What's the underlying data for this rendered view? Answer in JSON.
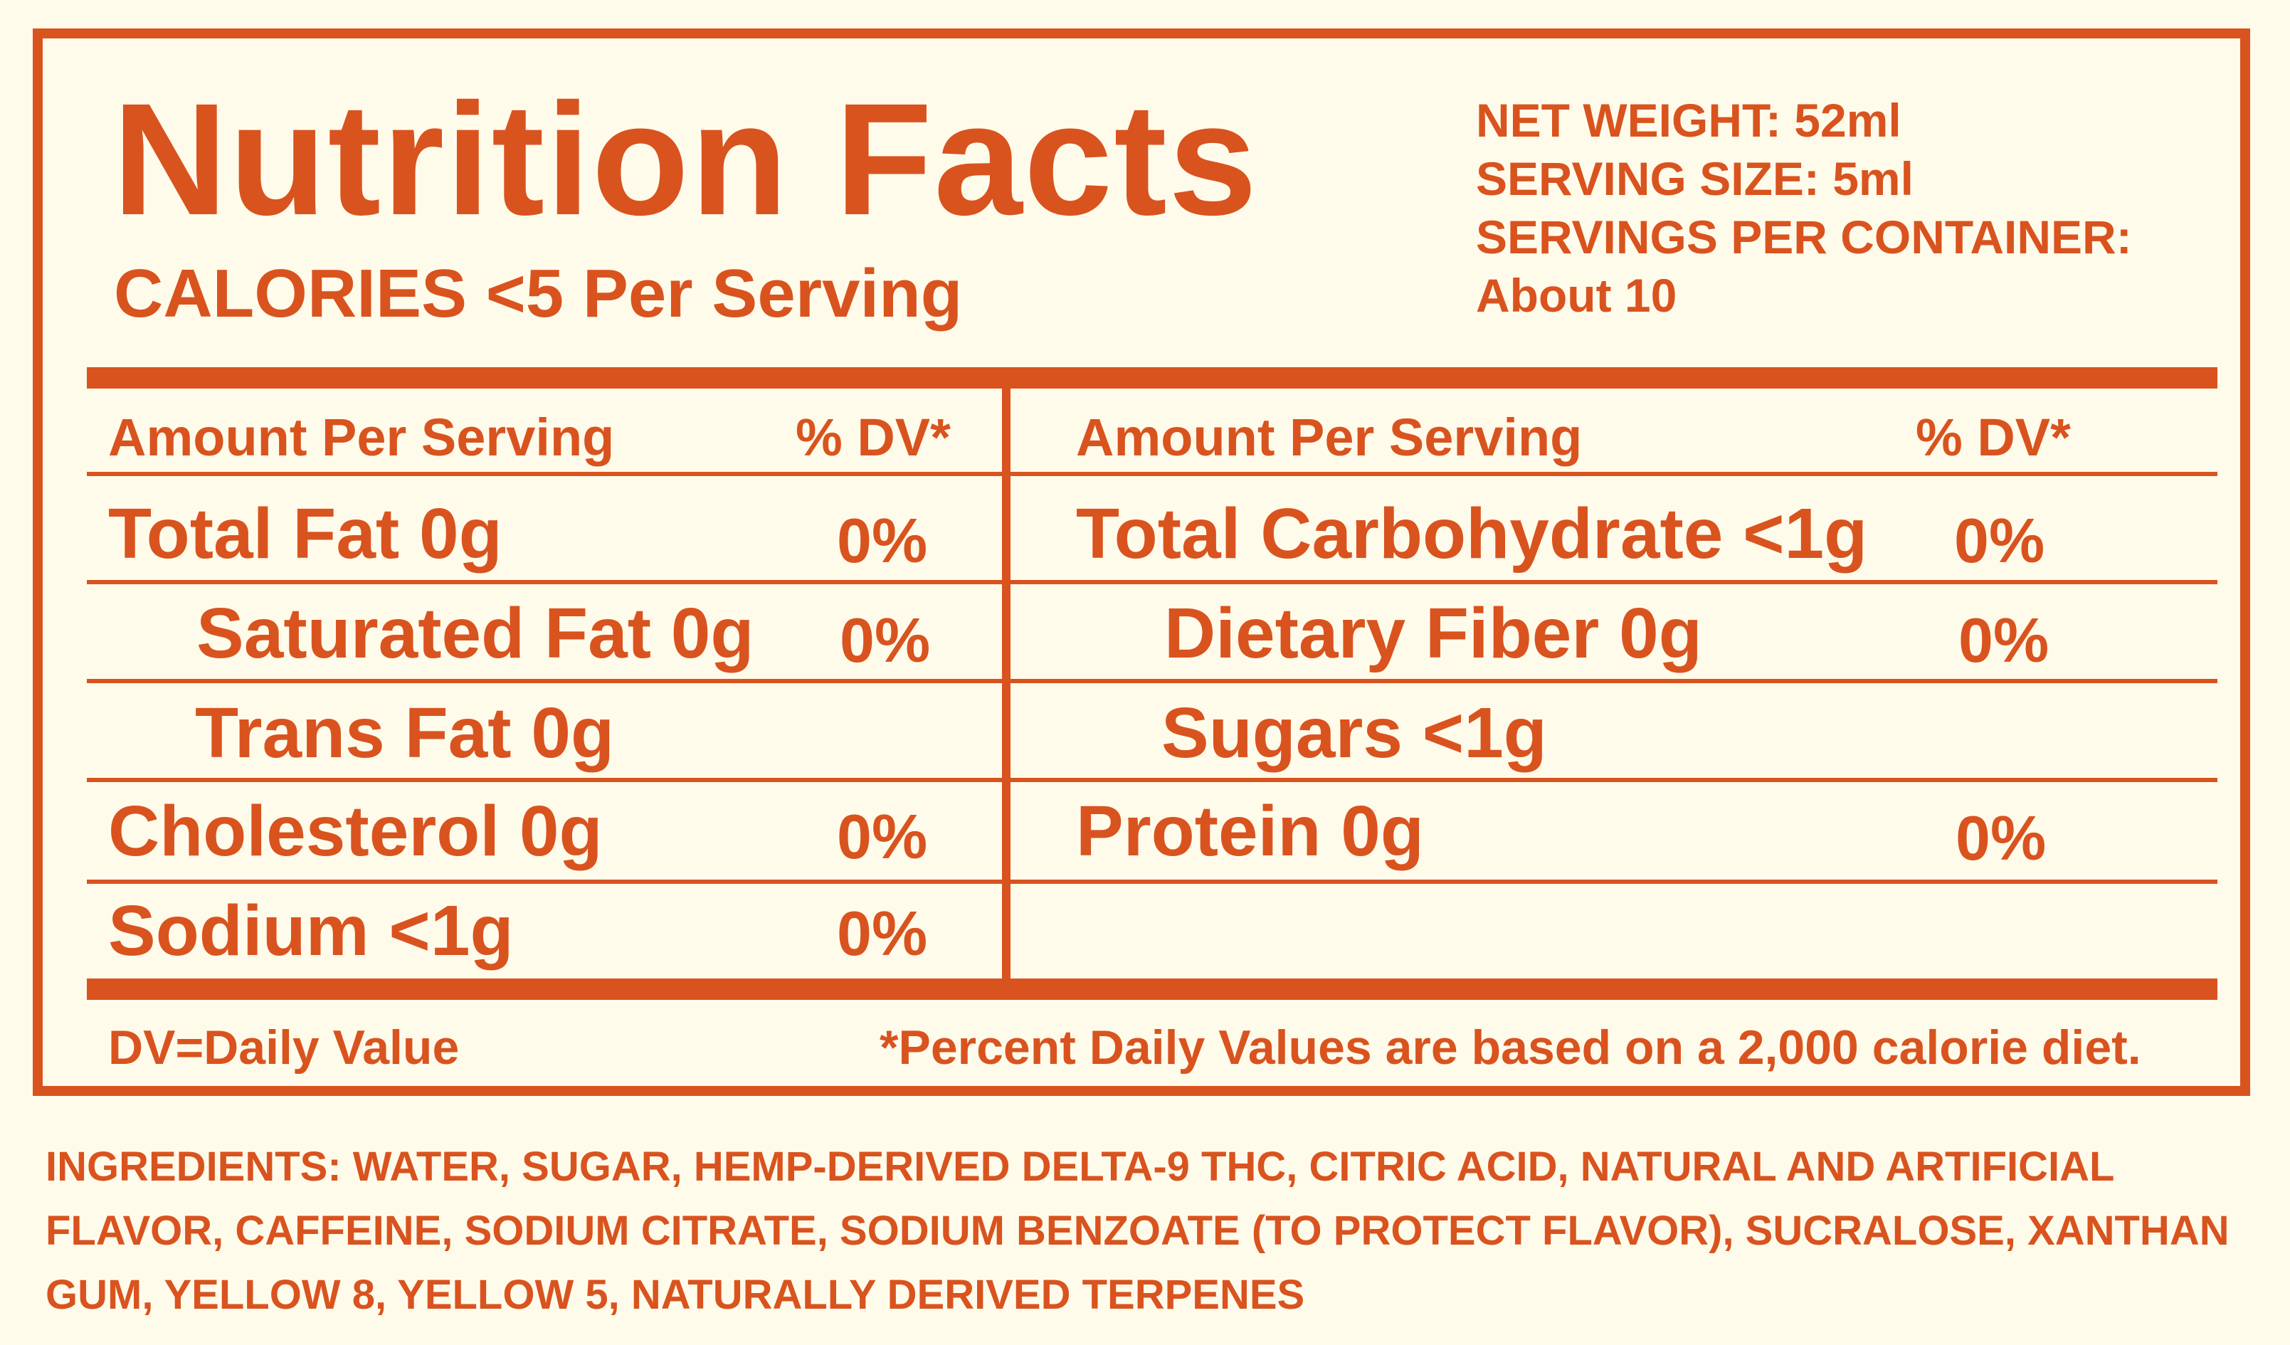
{
  "title": "Nutrition Facts",
  "calories": "CALORIES <5 Per Serving",
  "net_info": {
    "net_weight": "NET WEIGHT: 52ml",
    "serving_size": "SERVING SIZE: 5ml",
    "servings_per_container": "SERVINGS PER CONTAINER:",
    "servings_value": "About 10"
  },
  "left_column": {
    "header_amount": "Amount Per Serving",
    "header_dv": "% DV*",
    "rows": [
      {
        "label": "Total Fat 0g",
        "dv": "0%"
      },
      {
        "label": "Saturated Fat 0g",
        "dv": "0%"
      },
      {
        "label": "Trans Fat 0g",
        "dv": ""
      },
      {
        "label": "Cholesterol 0g",
        "dv": "0%"
      },
      {
        "label": "Sodium <1g",
        "dv": "0%"
      }
    ]
  },
  "right_column": {
    "header_amount": "Amount Per Serving",
    "header_dv": "% DV*",
    "rows": [
      {
        "label": "Total Carbohydrate <1g",
        "dv": "0%"
      },
      {
        "label": "Dietary Fiber 0g",
        "dv": "0%"
      },
      {
        "label": "Sugars <1g",
        "dv": ""
      },
      {
        "label": "Protein 0g",
        "dv": "0%"
      }
    ]
  },
  "footer": {
    "dv_note": "DV=Daily Value",
    "percent_note": "*Percent Daily Values are based on a 2,000 calorie diet."
  },
  "ingredients": "INGREDIENTS: WATER, SUGAR, HEMP-DERIVED DELTA-9 THC, CITRIC ACID, NATURAL AND ARTIFICIAL FLAVOR, CAFFEINE, SODIUM CITRATE, SODIUM BENZOATE (TO PROTECT FLAVOR), SUCRALOSE, XANTHAN GUM, YELLOW 8, YELLOW 5, NATURALLY DERIVED TERPENES",
  "colors": {
    "accent": "#d9531f",
    "background": "#fffbeb"
  }
}
